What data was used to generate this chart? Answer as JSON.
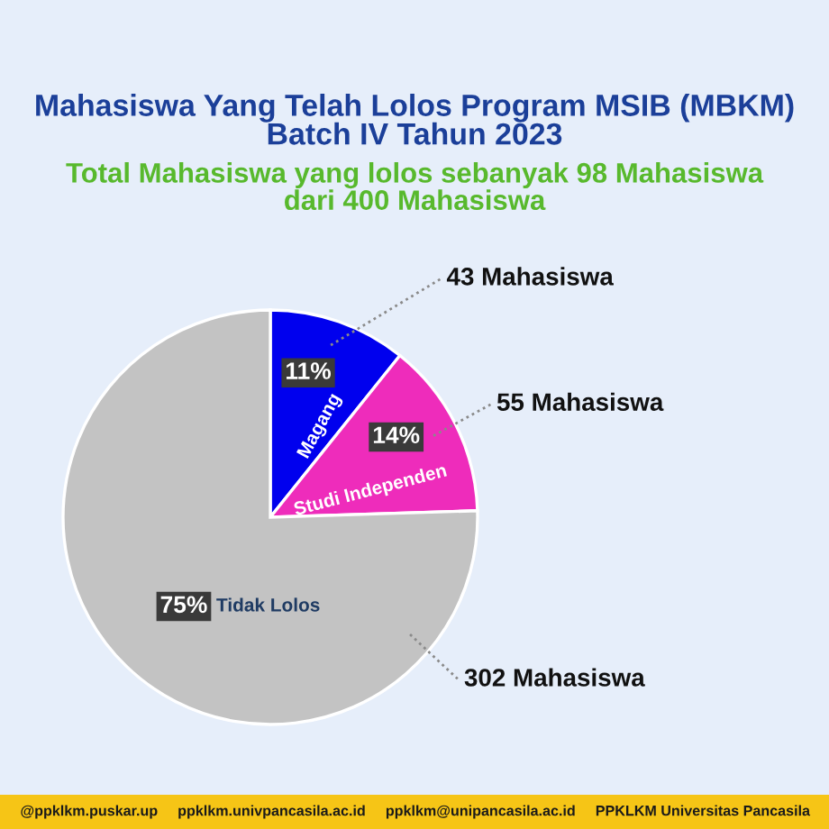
{
  "chart_data": {
    "type": "pie",
    "title": "Mahasiswa Yang Telah Lolos Program MSIB (MBKM)\nBatch IV Tahun 2023",
    "subtitle": "Total Mahasiswa yang lolos sebanyak 98 Mahasiswa\ndari 400 Mahasiswa",
    "categories": [
      "Magang",
      "Studi Independen",
      "Tidak Lolos"
    ],
    "values": [
      43,
      55,
      302
    ],
    "colors": [
      "#0000ee",
      "#ee2cbb",
      "#c3c3c3"
    ],
    "value_labels": [
      "43 Mahasiswa",
      "55 Mahasiswa",
      "302 Mahasiswa"
    ],
    "annotations": [
      {
        "text": "11%",
        "x": "Magang"
      },
      {
        "text": "14%",
        "x": "Studi Independen"
      },
      {
        "text": "75%",
        "x": "Tidak Lolos"
      },
      "@ppklkm.puskar.up",
      "ppklkm.univpancasila.ac.id",
      "ppklkm@unipancasila.ac.id",
      "PPKLKM Universitas Pancasila"
    ]
  }
}
